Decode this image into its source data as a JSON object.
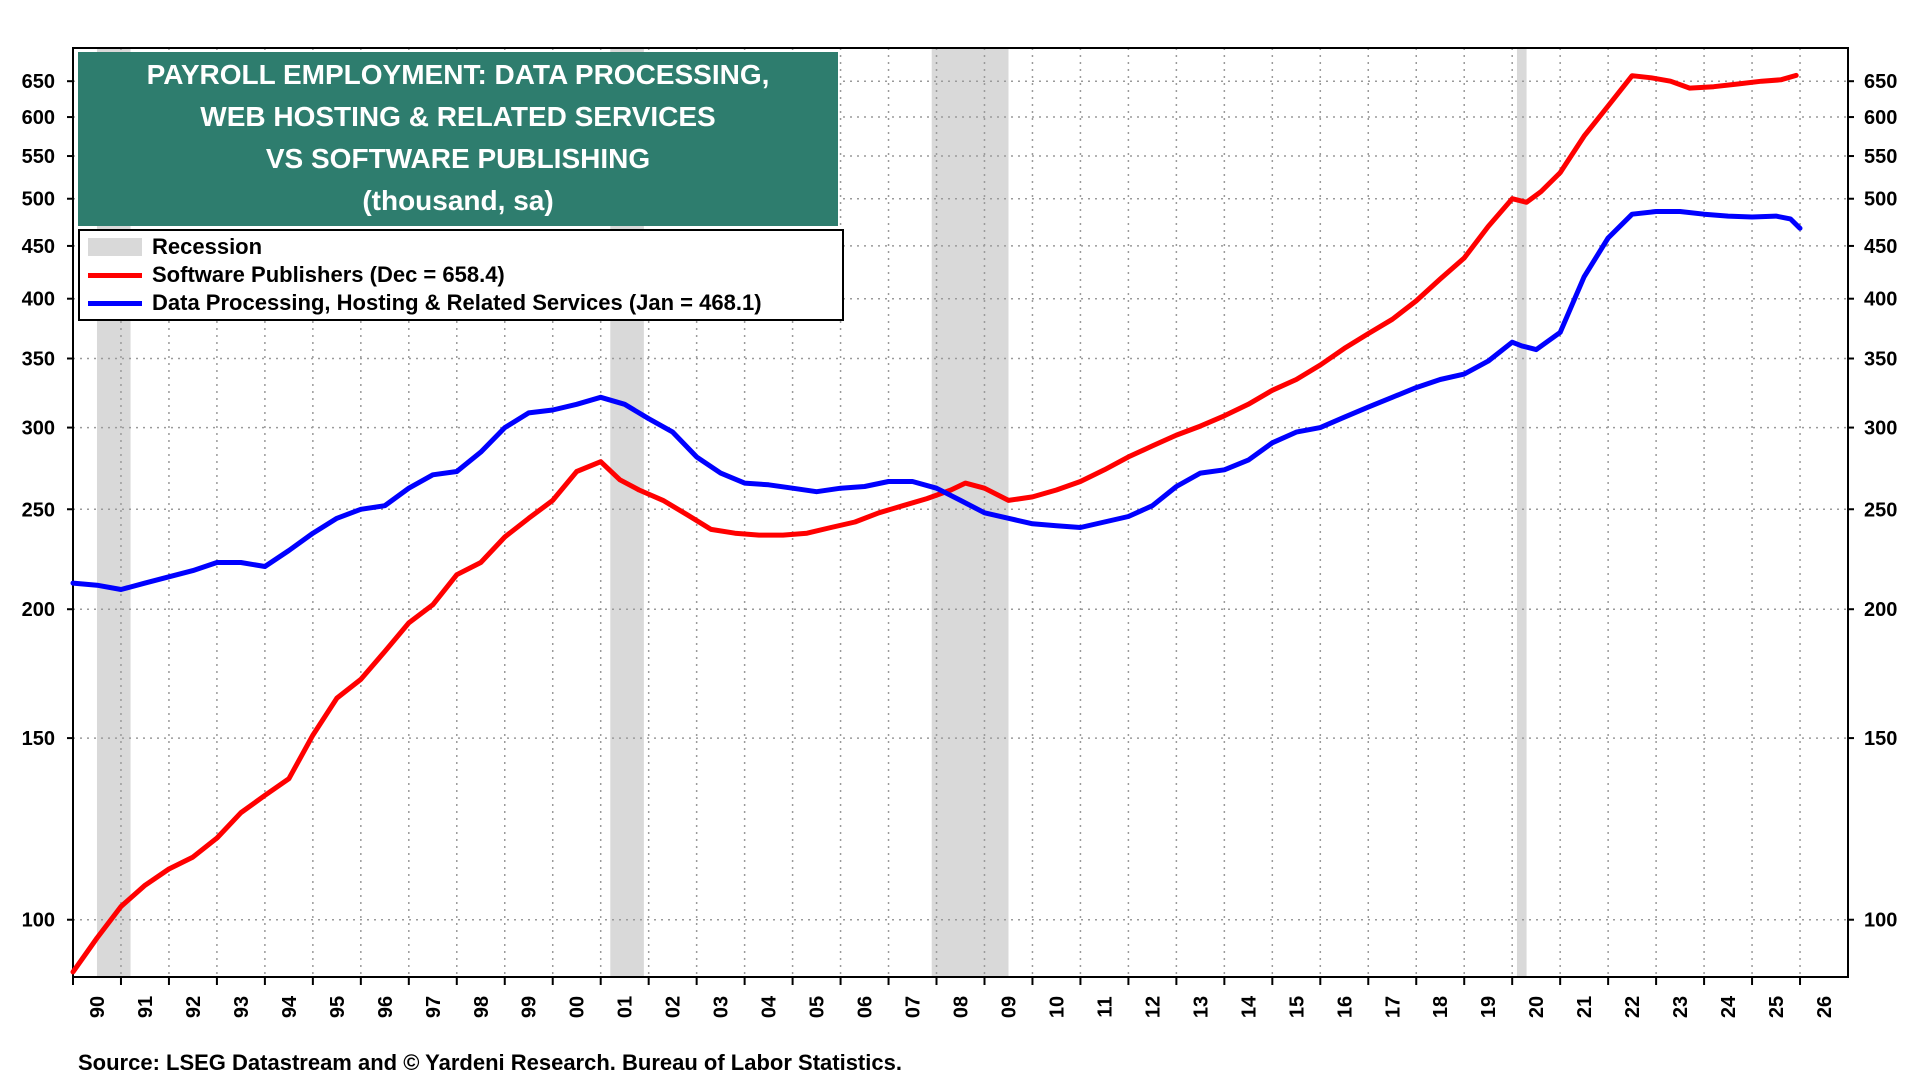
{
  "chart_data": {
    "type": "line",
    "title": "PAYROLL EMPLOYMENT: DATA PROCESSING, WEB HOSTING & RELATED SERVICES VS SOFTWARE PUBLISHING",
    "title_lines": [
      "PAYROLL EMPLOYMENT: DATA PROCESSING,",
      "WEB HOSTING & RELATED SERVICES",
      "VS SOFTWARE PUBLISHING",
      "(thousand, sa)"
    ],
    "subtitle": "(thousand, sa)",
    "y_scale": "log",
    "ylim": [
      88,
      700
    ],
    "xlim": [
      1990,
      2027
    ],
    "y_ticks": [
      100,
      150,
      200,
      250,
      300,
      350,
      400,
      450,
      500,
      550,
      600,
      650
    ],
    "x_ticks": [
      "90",
      "91",
      "92",
      "93",
      "94",
      "95",
      "96",
      "97",
      "98",
      "99",
      "00",
      "01",
      "02",
      "03",
      "04",
      "05",
      "06",
      "07",
      "08",
      "09",
      "10",
      "11",
      "12",
      "13",
      "14",
      "15",
      "16",
      "17",
      "18",
      "19",
      "20",
      "21",
      "22",
      "23",
      "24",
      "25",
      "26"
    ],
    "grid": true,
    "legend_position": "top-left",
    "recessions": [
      {
        "start": 1990.5,
        "end": 1991.2
      },
      {
        "start": 2001.2,
        "end": 2001.9
      },
      {
        "start": 2007.9,
        "end": 2009.5
      },
      {
        "start": 2020.1,
        "end": 2020.3
      }
    ],
    "legend": {
      "recession": "Recession",
      "software": "Software Publishers (Dec = 658.4)",
      "data_processing": "Data Processing, Hosting & Related Services (Jan = 468.1)"
    },
    "series": [
      {
        "name": "Software Publishers",
        "color": "#ff0000",
        "x": [
          1990.0,
          1990.5,
          1991.0,
          1991.5,
          1992.0,
          1992.5,
          1993.0,
          1993.5,
          1994.0,
          1994.5,
          1995.0,
          1995.5,
          1996.0,
          1996.5,
          1997.0,
          1997.5,
          1998.0,
          1998.5,
          1999.0,
          1999.5,
          2000.0,
          2000.5,
          2001.0,
          2001.4,
          2001.8,
          2002.3,
          2002.8,
          2003.3,
          2003.8,
          2004.3,
          2004.8,
          2005.3,
          2005.8,
          2006.3,
          2006.8,
          2007.3,
          2007.8,
          2008.3,
          2008.6,
          2009.0,
          2009.5,
          2010.0,
          2010.5,
          2011.0,
          2011.5,
          2012.0,
          2012.5,
          2013.0,
          2013.5,
          2014.0,
          2014.5,
          2015.0,
          2015.5,
          2016.0,
          2016.5,
          2017.0,
          2017.5,
          2018.0,
          2018.5,
          2019.0,
          2019.5,
          2020.0,
          2020.3,
          2020.6,
          2021.0,
          2021.5,
          2022.0,
          2022.5,
          2022.9,
          2023.3,
          2023.7,
          2024.2,
          2024.7,
          2025.2,
          2025.6,
          2025.92
        ],
        "values": [
          89,
          96,
          103,
          108,
          112,
          115,
          120,
          127,
          132,
          137,
          151,
          164,
          171,
          182,
          194,
          202,
          216,
          222,
          235,
          245,
          255,
          272,
          278,
          267,
          261,
          255,
          247,
          239,
          237,
          236,
          236,
          237,
          240,
          243,
          248,
          252,
          256,
          261,
          265,
          262,
          255,
          257,
          261,
          266,
          273,
          281,
          288,
          295,
          301,
          308,
          316,
          326,
          334,
          345,
          358,
          370,
          382,
          398,
          418,
          438,
          470,
          500,
          496,
          508,
          530,
          575,
          615,
          658,
          655,
          650,
          640,
          642,
          646,
          650,
          652,
          658.4
        ]
      },
      {
        "name": "Data Processing, Hosting & Related Services",
        "color": "#0000ff",
        "x": [
          1990.0,
          1990.5,
          1991.0,
          1991.5,
          1992.0,
          1992.5,
          1993.0,
          1993.5,
          1994.0,
          1994.5,
          1995.0,
          1995.5,
          1996.0,
          1996.5,
          1997.0,
          1997.5,
          1998.0,
          1998.5,
          1999.0,
          1999.5,
          2000.0,
          2000.5,
          2001.0,
          2001.5,
          2002.0,
          2002.5,
          2003.0,
          2003.5,
          2004.0,
          2004.5,
          2005.0,
          2005.5,
          2006.0,
          2006.5,
          2007.0,
          2007.5,
          2008.0,
          2008.5,
          2009.0,
          2009.5,
          2010.0,
          2010.5,
          2011.0,
          2011.5,
          2012.0,
          2012.5,
          2013.0,
          2013.5,
          2014.0,
          2014.5,
          2015.0,
          2015.5,
          2016.0,
          2016.5,
          2017.0,
          2017.5,
          2018.0,
          2018.5,
          2019.0,
          2019.5,
          2020.0,
          2020.2,
          2020.5,
          2021.0,
          2021.5,
          2022.0,
          2022.5,
          2023.0,
          2023.5,
          2024.0,
          2024.5,
          2025.0,
          2025.5,
          2025.8,
          2026.0
        ],
        "values": [
          212,
          211,
          209,
          212,
          215,
          218,
          222,
          222,
          220,
          228,
          237,
          245,
          250,
          252,
          262,
          270,
          272,
          284,
          300,
          310,
          312,
          316,
          321,
          316,
          306,
          297,
          281,
          271,
          265,
          264,
          262,
          260,
          262,
          263,
          266,
          266,
          262,
          255,
          248,
          245,
          242,
          241,
          240,
          243,
          246,
          252,
          263,
          271,
          273,
          279,
          290,
          297,
          300,
          307,
          314,
          321,
          328,
          334,
          338,
          348,
          363,
          360,
          357,
          371,
          420,
          458,
          483,
          486,
          486,
          483,
          481,
          480,
          481,
          478,
          468.1
        ]
      }
    ],
    "source": "Source: LSEG Datastream and © Yardeni Research. Bureau of Labor Statistics."
  }
}
